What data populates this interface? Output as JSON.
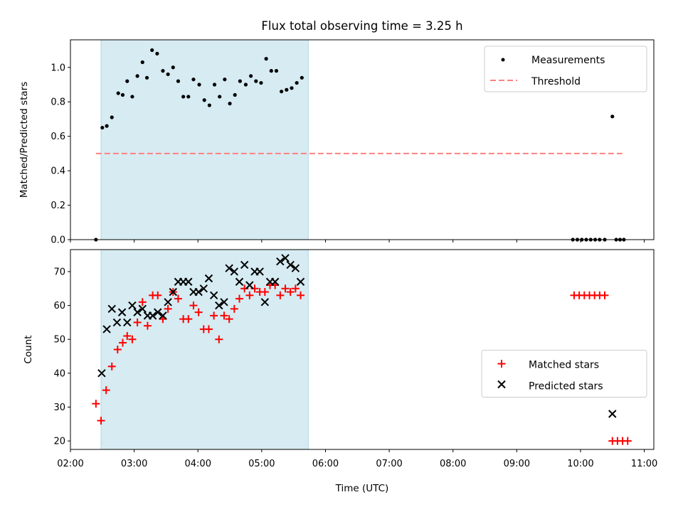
{
  "chart_data": [
    {
      "type": "scatter",
      "title": "Flux total observing time = 3.25 h",
      "xlabel": "",
      "ylabel": "Matched/Predicted stars",
      "xlim_hours": [
        2.0,
        11.15
      ],
      "ylim": [
        0,
        1.16
      ],
      "yticks": [
        "0.0",
        "0.2",
        "0.4",
        "0.6",
        "0.8",
        "1.0"
      ],
      "highlight_span_hours": [
        2.48,
        5.73
      ],
      "highlight_color": "#add8e6",
      "legend": {
        "placement": "upper right",
        "measurements_label": "Measurements",
        "threshold_label": "Threshold"
      },
      "threshold": {
        "value": 0.5,
        "x_range_hours": [
          2.4,
          10.7
        ],
        "color": "#ff8080",
        "style": "dashed"
      },
      "series": [
        {
          "name": "Measurements",
          "color": "#000000",
          "marker": "dot",
          "points": [
            [
              2.4,
              0.0
            ],
            [
              2.5,
              0.65
            ],
            [
              2.57,
              0.66
            ],
            [
              2.65,
              0.71
            ],
            [
              2.75,
              0.85
            ],
            [
              2.82,
              0.84
            ],
            [
              2.89,
              0.92
            ],
            [
              2.97,
              0.83
            ],
            [
              3.05,
              0.95
            ],
            [
              3.13,
              1.03
            ],
            [
              3.2,
              0.94
            ],
            [
              3.28,
              1.1
            ],
            [
              3.36,
              1.08
            ],
            [
              3.45,
              0.98
            ],
            [
              3.53,
              0.96
            ],
            [
              3.61,
              1.0
            ],
            [
              3.69,
              0.92
            ],
            [
              3.77,
              0.83
            ],
            [
              3.85,
              0.83
            ],
            [
              3.93,
              0.93
            ],
            [
              4.02,
              0.9
            ],
            [
              4.1,
              0.81
            ],
            [
              4.18,
              0.78
            ],
            [
              4.26,
              0.9
            ],
            [
              4.34,
              0.83
            ],
            [
              4.42,
              0.93
            ],
            [
              4.5,
              0.79
            ],
            [
              4.58,
              0.84
            ],
            [
              4.66,
              0.92
            ],
            [
              4.75,
              0.9
            ],
            [
              4.83,
              0.95
            ],
            [
              4.91,
              0.92
            ],
            [
              4.99,
              0.91
            ],
            [
              5.07,
              1.05
            ],
            [
              5.15,
              0.98
            ],
            [
              5.23,
              0.98
            ],
            [
              5.31,
              0.86
            ],
            [
              5.39,
              0.87
            ],
            [
              5.47,
              0.88
            ],
            [
              5.55,
              0.91
            ],
            [
              5.63,
              0.94
            ],
            [
              9.88,
              0.0
            ],
            [
              9.95,
              0.0
            ],
            [
              10.02,
              0.0
            ],
            [
              10.09,
              0.0
            ],
            [
              10.16,
              0.0
            ],
            [
              10.23,
              0.0
            ],
            [
              10.3,
              0.0
            ],
            [
              10.38,
              0.0
            ],
            [
              10.5,
              0.715
            ],
            [
              10.56,
              0.0
            ],
            [
              10.62,
              0.0
            ],
            [
              10.68,
              0.0
            ]
          ]
        }
      ]
    },
    {
      "type": "scatter",
      "xlabel": "Time (UTC)",
      "ylabel": "Count",
      "xlim_hours": [
        2.0,
        11.15
      ],
      "ylim": [
        17.5,
        76.5
      ],
      "yticks": [
        "20",
        "30",
        "40",
        "50",
        "60",
        "70"
      ],
      "xticks": [
        {
          "hour": 2,
          "label": "02:00"
        },
        {
          "hour": 3,
          "label": "03:00"
        },
        {
          "hour": 4,
          "label": "04:00"
        },
        {
          "hour": 5,
          "label": "05:00"
        },
        {
          "hour": 6,
          "label": "06:00"
        },
        {
          "hour": 7,
          "label": "07:00"
        },
        {
          "hour": 8,
          "label": "08:00"
        },
        {
          "hour": 9,
          "label": "09:00"
        },
        {
          "hour": 10,
          "label": "10:00"
        },
        {
          "hour": 11,
          "label": "11:00"
        }
      ],
      "highlight_span_hours": [
        2.48,
        5.73
      ],
      "highlight_color": "#add8e6",
      "legend": {
        "placement": "center right"
      },
      "series": [
        {
          "name": "Matched stars",
          "color": "#ff0000",
          "marker": "plus",
          "points": [
            [
              2.4,
              31
            ],
            [
              2.48,
              26
            ],
            [
              2.56,
              35
            ],
            [
              2.65,
              42
            ],
            [
              2.74,
              47
            ],
            [
              2.82,
              49
            ],
            [
              2.89,
              51
            ],
            [
              2.97,
              50
            ],
            [
              3.05,
              55
            ],
            [
              3.13,
              61
            ],
            [
              3.21,
              54
            ],
            [
              3.29,
              63
            ],
            [
              3.37,
              63
            ],
            [
              3.45,
              56
            ],
            [
              3.53,
              59
            ],
            [
              3.61,
              64
            ],
            [
              3.69,
              62
            ],
            [
              3.77,
              56
            ],
            [
              3.85,
              56
            ],
            [
              3.93,
              60
            ],
            [
              4.01,
              58
            ],
            [
              4.09,
              53
            ],
            [
              4.17,
              53
            ],
            [
              4.25,
              57
            ],
            [
              4.33,
              50
            ],
            [
              4.41,
              57
            ],
            [
              4.49,
              56
            ],
            [
              4.57,
              59
            ],
            [
              4.65,
              62
            ],
            [
              4.73,
              65
            ],
            [
              4.81,
              63
            ],
            [
              4.89,
              65
            ],
            [
              4.97,
              64
            ],
            [
              5.05,
              64
            ],
            [
              5.13,
              66
            ],
            [
              5.21,
              66
            ],
            [
              5.29,
              63
            ],
            [
              5.37,
              65
            ],
            [
              5.45,
              64
            ],
            [
              5.53,
              65
            ],
            [
              5.61,
              63
            ],
            [
              9.9,
              63
            ],
            [
              9.98,
              63
            ],
            [
              10.06,
              63
            ],
            [
              10.14,
              63
            ],
            [
              10.22,
              63
            ],
            [
              10.3,
              63
            ],
            [
              10.38,
              63
            ],
            [
              10.5,
              20
            ],
            [
              10.58,
              20
            ],
            [
              10.66,
              20
            ],
            [
              10.74,
              20
            ]
          ]
        },
        {
          "name": "Predicted stars",
          "color": "#000000",
          "marker": "x",
          "points": [
            [
              2.49,
              40
            ],
            [
              2.57,
              53
            ],
            [
              2.65,
              59
            ],
            [
              2.73,
              55
            ],
            [
              2.81,
              58
            ],
            [
              2.89,
              55
            ],
            [
              2.97,
              60
            ],
            [
              3.05,
              58
            ],
            [
              3.13,
              59
            ],
            [
              3.21,
              57
            ],
            [
              3.29,
              57
            ],
            [
              3.37,
              58
            ],
            [
              3.45,
              57
            ],
            [
              3.53,
              61
            ],
            [
              3.61,
              64
            ],
            [
              3.69,
              67
            ],
            [
              3.77,
              67
            ],
            [
              3.85,
              67
            ],
            [
              3.93,
              64
            ],
            [
              4.01,
              64
            ],
            [
              4.09,
              65
            ],
            [
              4.17,
              68
            ],
            [
              4.25,
              63
            ],
            [
              4.33,
              60
            ],
            [
              4.41,
              61
            ],
            [
              4.49,
              71
            ],
            [
              4.57,
              70
            ],
            [
              4.65,
              67
            ],
            [
              4.73,
              72
            ],
            [
              4.81,
              66
            ],
            [
              4.89,
              70
            ],
            [
              4.97,
              70
            ],
            [
              5.05,
              61
            ],
            [
              5.13,
              67
            ],
            [
              5.21,
              67
            ],
            [
              5.29,
              73
            ],
            [
              5.37,
              74
            ],
            [
              5.45,
              72
            ],
            [
              5.53,
              71
            ],
            [
              5.61,
              67
            ],
            [
              10.5,
              28
            ]
          ]
        }
      ]
    }
  ]
}
